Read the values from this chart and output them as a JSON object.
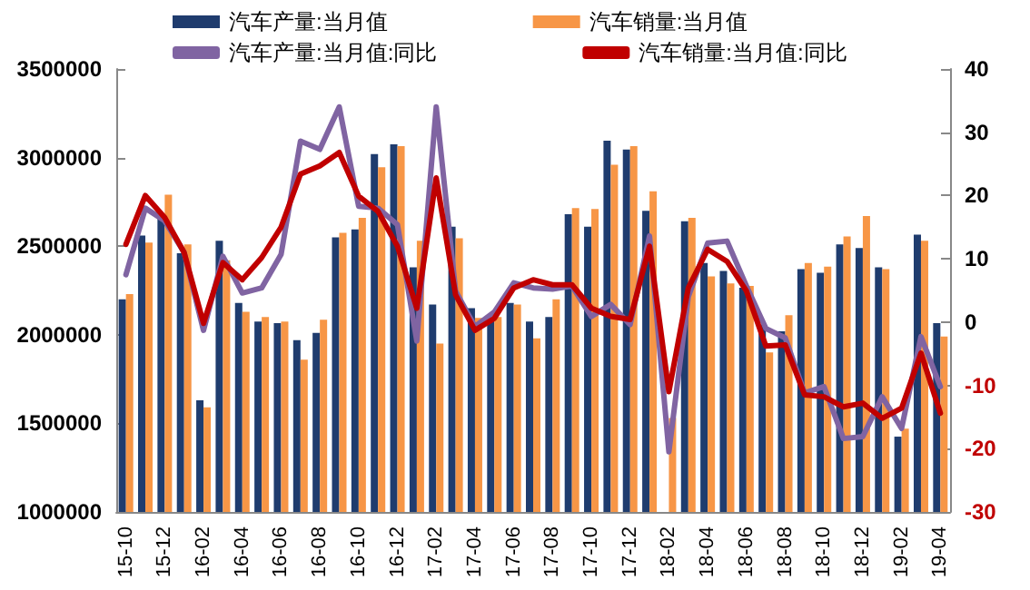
{
  "chart_data": {
    "type": "bar",
    "categories": [
      "15-10",
      null,
      "15-12",
      null,
      "16-02",
      null,
      "16-04",
      null,
      "16-06",
      null,
      "16-08",
      null,
      "16-10",
      null,
      "16-12",
      null,
      "17-02",
      null,
      "17-04",
      null,
      "17-06",
      null,
      "17-08",
      null,
      "17-10",
      null,
      "17-12",
      null,
      "18-02",
      null,
      "18-04",
      null,
      "18-06",
      null,
      "18-08",
      null,
      "18-10",
      null,
      "18-12",
      null,
      "19-02",
      null,
      "19-04"
    ],
    "series": [
      {
        "name": "汽车产量:当月值",
        "color": "#1f3c6e",
        "values": [
          2200000,
          2560000,
          2670000,
          2460000,
          1630000,
          2530000,
          2180000,
          2075000,
          2065000,
          1970000,
          2010000,
          2550000,
          2595000,
          3020000,
          3075000,
          2380000,
          2170000,
          2610000,
          2150000,
          2095000,
          2180000,
          2075000,
          2100000,
          2680000,
          2610000,
          3095000,
          3045000,
          2700000,
          null,
          2640000,
          2405000,
          2360000,
          2265000,
          2055000,
          2020000,
          2370000,
          2350000,
          2510000,
          2490000,
          2380000,
          1425000,
          2565000,
          2065000
        ]
      },
      {
        "name": "汽车销量:当月值",
        "color": "#f79646",
        "values": [
          2230000,
          2520000,
          2790000,
          2510000,
          1590000,
          2420000,
          2130000,
          2100000,
          2075000,
          1860000,
          2085000,
          2575000,
          2660000,
          2945000,
          3065000,
          2530000,
          1950000,
          2545000,
          2095000,
          2100000,
          2170000,
          1980000,
          2200000,
          2715000,
          2710000,
          2960000,
          3065000,
          2810000,
          1530000,
          2660000,
          2330000,
          2290000,
          2275000,
          1900000,
          2110000,
          2405000,
          2385000,
          2555000,
          2670000,
          2370000,
          1470000,
          2530000,
          1990000
        ]
      },
      {
        "name": "汽车产量:当月值:同比",
        "type": "line",
        "axis": "y2",
        "color": "#8064a2",
        "values": [
          7.5,
          18,
          16,
          11,
          -1.3,
          10.4,
          4.6,
          5.4,
          10.7,
          28.6,
          27.3,
          34,
          18.3,
          18,
          15.4,
          -3,
          34,
          4.9,
          -0.7,
          1.6,
          6.2,
          5.4,
          5.2,
          5.7,
          0.9,
          2.8,
          -0.4,
          13.6,
          -20.5,
          4,
          12.5,
          12.8,
          5.7,
          -1,
          -2.5,
          -11.2,
          -10.2,
          -18.4,
          -18.1,
          -11.8,
          -16.8,
          -2.3,
          -10.2
        ]
      },
      {
        "name": "汽车销量:当月值:同比",
        "type": "line",
        "axis": "y2",
        "color": "#c00000",
        "values": [
          12.3,
          20,
          16.5,
          11,
          -0.2,
          9.4,
          6.7,
          10.2,
          15,
          23.4,
          24.7,
          26.8,
          19.9,
          17.5,
          12,
          2.2,
          22.8,
          4.3,
          -1.3,
          0.6,
          5.4,
          6.7,
          5.9,
          5.9,
          2.2,
          0.9,
          0.4,
          12,
          -11,
          5.4,
          11.5,
          9.6,
          4.9,
          -3.8,
          -3.6,
          -11.5,
          -11.8,
          -13.4,
          -12.8,
          -15.2,
          -13.6,
          -4.9,
          -14.4
        ]
      }
    ],
    "ylim": [
      1000000,
      3500000
    ],
    "yticks": [
      1000000,
      1500000,
      2000000,
      2500000,
      3000000,
      3500000
    ],
    "y2lim": [
      -30,
      40
    ],
    "y2ticks": [
      -30,
      -20,
      -10,
      0,
      10,
      20,
      30,
      40
    ],
    "legend": "top",
    "grid": false,
    "marker": "none",
    "line_style": "solid"
  }
}
